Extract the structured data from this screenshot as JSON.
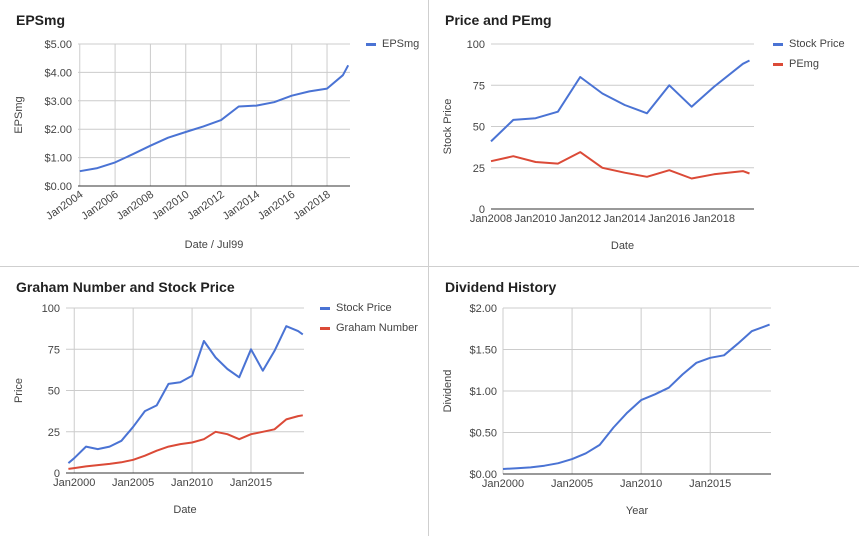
{
  "colors": {
    "blue": "#4a73d4",
    "red": "#db4a37",
    "grid": "#cccccc",
    "axis": "#333333",
    "text": "#444444"
  },
  "chart_data": [
    {
      "type": "line",
      "title": "EPSmg",
      "xlabel": "Date / Jul99",
      "ylabel": "EPSmg",
      "x_kind": "date",
      "xlim": [
        2003.9,
        2019.3
      ],
      "ylim": [
        0,
        5
      ],
      "yticks": [
        0,
        1,
        2,
        3,
        4,
        5
      ],
      "ytick_labels": [
        "$0.00",
        "$1.00",
        "$2.00",
        "$3.00",
        "$4.00",
        "$5.00"
      ],
      "xticks": [
        2004,
        2006,
        2008,
        2010,
        2012,
        2014,
        2016,
        2018
      ],
      "xtick_labels": [
        "Jan2004",
        "Jan2006",
        "Jan2008",
        "Jan2010",
        "Jan2012",
        "Jan2014",
        "Jan2016",
        "Jan2018"
      ],
      "xtick_rotate": true,
      "vgrid": true,
      "legend_position": "right",
      "x": [
        2004,
        2005,
        2006,
        2007,
        2008,
        2009,
        2010,
        2011,
        2012,
        2013,
        2014,
        2015,
        2016,
        2017,
        2018,
        2018.9,
        2019.2
      ],
      "series": [
        {
          "name": "EPSmg",
          "color": "#4a73d4",
          "values": [
            0.52,
            0.63,
            0.83,
            1.12,
            1.42,
            1.7,
            1.9,
            2.1,
            2.32,
            2.8,
            2.83,
            2.95,
            3.18,
            3.33,
            3.43,
            3.9,
            4.25
          ]
        }
      ]
    },
    {
      "type": "line",
      "title": "Price and PEmg",
      "xlabel": "Date",
      "ylabel": "Stock Price",
      "x_kind": "date",
      "xlim": [
        2008,
        2019.8
      ],
      "ylim": [
        0,
        100
      ],
      "yticks": [
        0,
        25,
        50,
        75,
        100
      ],
      "ytick_labels": [
        "0",
        "25",
        "50",
        "75",
        "100"
      ],
      "xticks": [
        2008,
        2010,
        2012,
        2014,
        2016,
        2018
      ],
      "xtick_labels": [
        "Jan2008",
        "Jan2010",
        "Jan2012",
        "Jan2014",
        "Jan2016",
        "Jan2018"
      ],
      "xtick_rotate": false,
      "vgrid": false,
      "legend_position": "right",
      "x": [
        2008,
        2009,
        2010,
        2011,
        2012,
        2013,
        2014,
        2015,
        2016,
        2017,
        2018,
        2019.3,
        2019.6
      ],
      "series": [
        {
          "name": "Stock Price",
          "color": "#4a73d4",
          "values": [
            41,
            54,
            55,
            59,
            80,
            70,
            63,
            58,
            75,
            62,
            74,
            88,
            90
          ]
        },
        {
          "name": "PEmg",
          "color": "#db4a37",
          "values": [
            29,
            32,
            28.5,
            27.5,
            34.5,
            25,
            22,
            19.5,
            23.5,
            18.5,
            21,
            23,
            21.5
          ]
        }
      ]
    },
    {
      "type": "line",
      "title": "Graham Number and Stock Price",
      "xlabel": "Date",
      "ylabel": "Price",
      "x_kind": "date",
      "xlim": [
        1999.3,
        2019.5
      ],
      "ylim": [
        0,
        100
      ],
      "yticks": [
        0,
        25,
        50,
        75,
        100
      ],
      "ytick_labels": [
        "0",
        "25",
        "50",
        "75",
        "100"
      ],
      "xticks": [
        2000,
        2005,
        2010,
        2015
      ],
      "xtick_labels": [
        "Jan2000",
        "Jan2005",
        "Jan2010",
        "Jan2015"
      ],
      "xtick_rotate": false,
      "vgrid": true,
      "legend_position": "right",
      "x": [
        1999.5,
        2000,
        2001,
        2002,
        2003,
        2004,
        2005,
        2006,
        2007,
        2008,
        2009,
        2010,
        2011,
        2012,
        2013,
        2014,
        2015,
        2016,
        2017,
        2018,
        2019,
        2019.4
      ],
      "series": [
        {
          "name": "Stock Price",
          "color": "#4a73d4",
          "values": [
            6,
            9,
            16,
            14.5,
            16,
            19.5,
            28,
            37.5,
            41,
            54,
            55,
            59,
            80,
            70,
            63,
            58,
            75,
            62,
            74,
            89,
            86,
            84
          ]
        },
        {
          "name": "Graham Number",
          "color": "#db4a37",
          "values": [
            2.5,
            3,
            4,
            4.8,
            5.5,
            6.5,
            8,
            10.5,
            13.5,
            16,
            17.5,
            18.5,
            20.5,
            25,
            23.5,
            20.5,
            23.5,
            25,
            26.5,
            32.5,
            34.5,
            35
          ]
        }
      ]
    },
    {
      "type": "line",
      "title": "Dividend History",
      "xlabel": "Year",
      "ylabel": "Dividend",
      "x_kind": "year",
      "xlim": [
        2000,
        2019.4
      ],
      "ylim": [
        0,
        2
      ],
      "yticks": [
        0,
        0.5,
        1,
        1.5,
        2
      ],
      "ytick_labels": [
        "$0.00",
        "$0.50",
        "$1.00",
        "$1.50",
        "$2.00"
      ],
      "xticks": [
        2000,
        2005,
        2010,
        2015
      ],
      "xtick_labels": [
        "Jan2000",
        "Jan2005",
        "Jan2010",
        "Jan2015"
      ],
      "xtick_rotate": false,
      "vgrid": true,
      "legend_position": "none",
      "x": [
        2000,
        2001,
        2002,
        2003,
        2004,
        2005,
        2006,
        2007,
        2008,
        2009,
        2010,
        2011,
        2012,
        2013,
        2014,
        2015,
        2016,
        2017,
        2018,
        2019.3
      ],
      "series": [
        {
          "name": "",
          "color": "#4a73d4",
          "values": [
            0.06,
            0.07,
            0.08,
            0.1,
            0.13,
            0.18,
            0.25,
            0.35,
            0.56,
            0.74,
            0.89,
            0.96,
            1.04,
            1.2,
            1.34,
            1.4,
            1.43,
            1.57,
            1.72,
            1.8
          ]
        }
      ]
    }
  ]
}
